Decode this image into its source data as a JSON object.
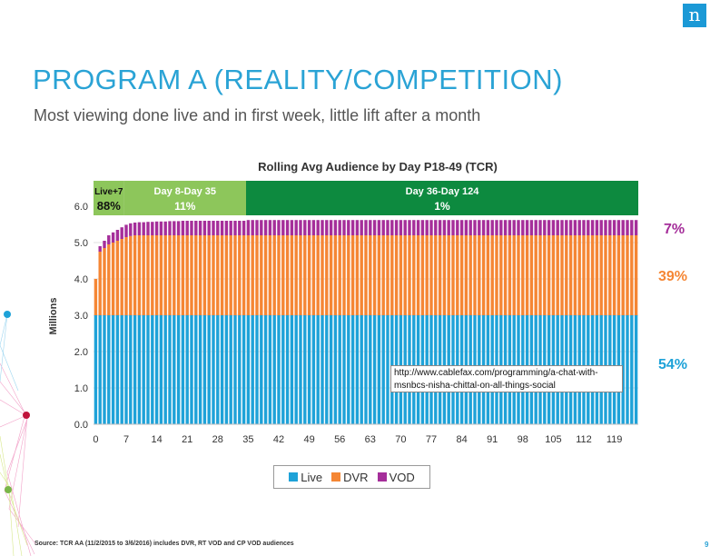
{
  "slide": {
    "title": "PROGRAM A (REALITY/COMPETITION)",
    "subtitle": "Most viewing done live and in first week, little lift after a month",
    "logo_letter": "n",
    "source": "Source: TCR AA (11/2/2015 to 3/6/2016) includes DVR, RT VOD and CP VOD audiences",
    "page_number": "9",
    "url_note": "http://www.cablefax.com/programming/a-chat-with-msnbcs-nisha-chittal-on-all-things-social"
  },
  "colors": {
    "title": "#2aa3d5",
    "live": "#1ea2d8",
    "dvr": "#f58634",
    "vod": "#a52e9a",
    "band_light": "#8dc65b",
    "band_dark": "#0d8a3f"
  },
  "chart_data": {
    "type": "bar",
    "stacked": true,
    "title": "Rolling Avg Audience by Day P18-49 (TCR)",
    "ylabel": "Millions",
    "xlabel": "",
    "ylim": [
      0,
      6.5
    ],
    "yticks": [
      "0.0",
      "1.0",
      "2.0",
      "3.0",
      "4.0",
      "5.0",
      "6.0"
    ],
    "xticks": [
      "0",
      "7",
      "14",
      "21",
      "28",
      "35",
      "42",
      "49",
      "56",
      "63",
      "70",
      "77",
      "84",
      "91",
      "98",
      "105",
      "112",
      "119"
    ],
    "x_range": [
      0,
      124
    ],
    "series": [
      {
        "name": "Live",
        "key": "live",
        "value": 3.0
      },
      {
        "name": "DVR",
        "key": "dvr",
        "early": [
          1.0,
          1.75,
          1.85,
          1.95,
          2.0,
          2.05,
          2.1,
          2.15,
          2.18,
          2.2
        ],
        "value": 2.2
      },
      {
        "name": "VOD",
        "key": "vod",
        "early": [
          0.0,
          0.15,
          0.2,
          0.25,
          0.28,
          0.3,
          0.32,
          0.34,
          0.35,
          0.35,
          0.36,
          0.36,
          0.37,
          0.37,
          0.38,
          0.38,
          0.38,
          0.39,
          0.39,
          0.39,
          0.4,
          0.4,
          0.4,
          0.4,
          0.4,
          0.4,
          0.4,
          0.4,
          0.4,
          0.4,
          0.4,
          0.4,
          0.4,
          0.4,
          0.4
        ],
        "value": 0.42
      }
    ],
    "periods": [
      {
        "label": "Live+7",
        "pct": "88%",
        "start": 0,
        "end": 7,
        "shade": "light"
      },
      {
        "label": "Day 8-Day 35",
        "pct": "11%",
        "start": 7,
        "end": 35,
        "shade": "light"
      },
      {
        "label": "Day 36-Day 124",
        "pct": "1%",
        "start": 35,
        "end": 124,
        "shade": "dark"
      }
    ],
    "shares": {
      "vod": "7%",
      "dvr": "39%",
      "live": "54%"
    },
    "legend": {
      "position": "bottom",
      "items": [
        "Live",
        "DVR",
        "VOD"
      ]
    }
  }
}
